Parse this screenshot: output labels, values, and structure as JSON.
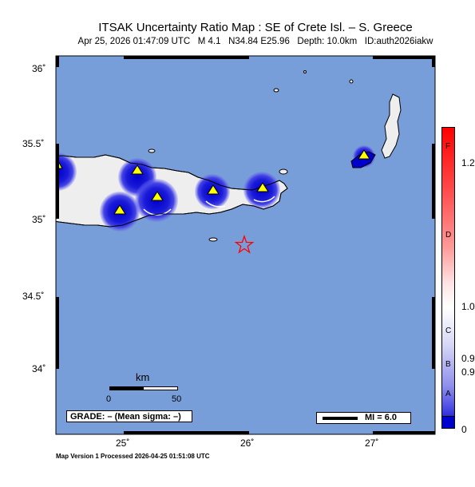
{
  "title": "ITSAK Uncertainty Ratio Map : SE of Crete Isl. – S. Greece",
  "subtitle": "Apr 25, 2026 01:47:09 UTC   M 4.1   N34.84 E25.96   Depth: 10.0km   ID:auth2026iakw",
  "footer": "Map Version 1 Processed 2026-04-25 01:51:08 UTC",
  "grade_text": "GRADE: – (Mean sigma: –)",
  "mi_text": "MI = 6.0",
  "scale": {
    "unit": "km",
    "start": "0",
    "end": "50"
  },
  "lat_labels": [
    "36˚",
    "35.5˚",
    "35˚",
    "34.5˚",
    "34˚"
  ],
  "lon_labels": [
    "25˚",
    "26˚",
    "27˚"
  ],
  "colorbar": {
    "letters": [
      "F",
      "D",
      "C",
      "B",
      "A"
    ],
    "values": [
      "1.2",
      "1.0",
      "0.9",
      "0.9",
      "0"
    ]
  },
  "colors": {
    "sea": "#779ed8",
    "land": "#eeeeee",
    "blue": "#0000cc",
    "star": "#ff0000",
    "station": "#ffff00"
  }
}
